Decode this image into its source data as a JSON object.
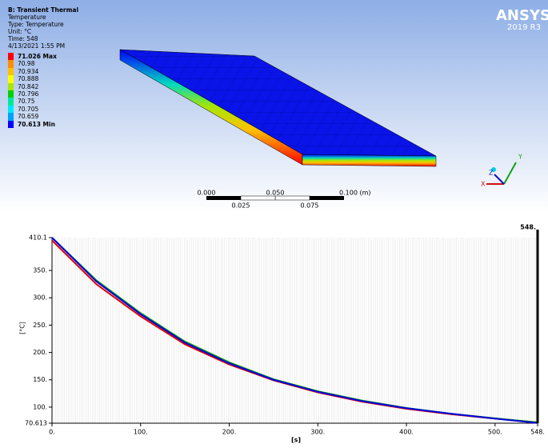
{
  "viewport": {
    "title_lines": [
      "B: Transient Thermal",
      "Temperature",
      "Type: Temperature",
      "Unit: °C",
      "Time: 548",
      "4/13/2021 1:55 PM"
    ],
    "legend": [
      {
        "label": "71.026 Max",
        "color": "#ff0000"
      },
      {
        "label": "70.98",
        "color": "#ff8c00"
      },
      {
        "label": "70.934",
        "color": "#ffc000"
      },
      {
        "label": "70.888",
        "color": "#ffff00"
      },
      {
        "label": "70.842",
        "color": "#a8e600"
      },
      {
        "label": "70.796",
        "color": "#00d000"
      },
      {
        "label": "70.75",
        "color": "#00e8a0"
      },
      {
        "label": "70.705",
        "color": "#00e8ff"
      },
      {
        "label": "70.659",
        "color": "#00a0ff"
      },
      {
        "label": "70.613 Min",
        "color": "#0000ff"
      }
    ],
    "logo": {
      "name": "ANSYS",
      "version": "2019 R3"
    },
    "scale_bar": {
      "top_labels": [
        "0.000",
        "0.050",
        "0.100 (m)"
      ],
      "bottom_labels": [
        "0.025",
        "0.075"
      ]
    },
    "triad": {
      "y": "Y",
      "z": "Z",
      "x": "X"
    }
  },
  "chart_data": {
    "type": "line",
    "y_label": "[°C]",
    "x_label": "[s]",
    "x": [
      0,
      50,
      100,
      150,
      200,
      250,
      300,
      350,
      400,
      450,
      500,
      548
    ],
    "series": [
      {
        "color": "#e00000",
        "values": [
          405,
          325,
          266,
          215,
          178,
          149,
          127,
          110,
          97,
          87,
          79,
          72
        ]
      },
      {
        "color": "#00a000",
        "values": [
          410,
          332,
          272,
          220,
          182,
          151,
          129,
          112,
          98.5,
          88,
          79.5,
          72
        ]
      },
      {
        "color": "#0000e0",
        "values": [
          410.1,
          330,
          270,
          218,
          180,
          150,
          128,
          111,
          98,
          88,
          79,
          71
        ]
      }
    ],
    "xlim": [
      0,
      548
    ],
    "ylim": [
      70.613,
      410.1
    ],
    "xticks": [
      {
        "value": 0,
        "label": "0."
      },
      {
        "value": 100,
        "label": "100."
      },
      {
        "value": 200,
        "label": "200."
      },
      {
        "value": 300,
        "label": "300."
      },
      {
        "value": 400,
        "label": "400."
      },
      {
        "value": 500,
        "label": "500."
      },
      {
        "value": 548,
        "label": "548."
      }
    ],
    "yticks": [
      70.613,
      {
        "value": 100,
        "label": "100."
      },
      {
        "value": 150,
        "label": "150."
      },
      {
        "value": 200,
        "label": "200."
      },
      {
        "value": 250,
        "label": "250."
      },
      {
        "value": 300,
        "label": "300."
      },
      {
        "value": 350,
        "label": "350."
      },
      410.1
    ],
    "cursor": {
      "value": 548,
      "label": "548."
    }
  }
}
